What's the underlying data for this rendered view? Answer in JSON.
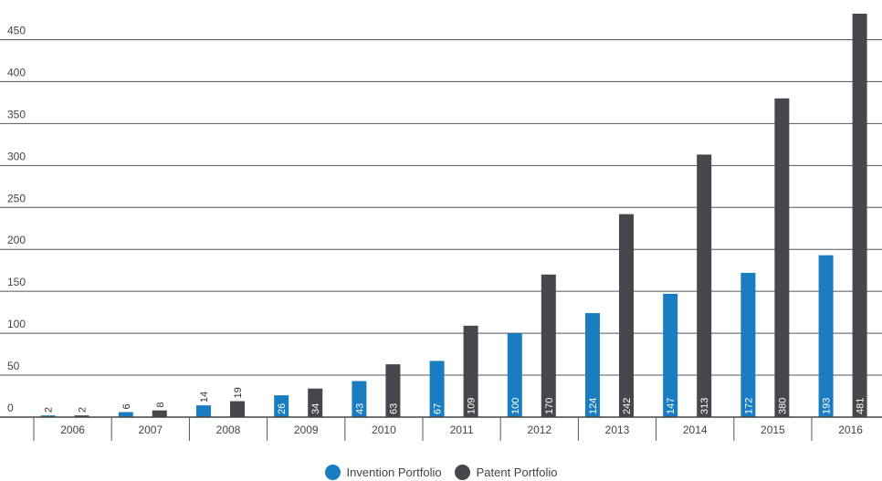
{
  "chart_data": {
    "type": "bar",
    "categories": [
      "2006",
      "2007",
      "2008",
      "2009",
      "2010",
      "2011",
      "2012",
      "2013",
      "2014",
      "2015",
      "2016"
    ],
    "series": [
      {
        "name": "Invention Portfolio",
        "color": "#1a7dc1",
        "values": [
          2,
          6,
          14,
          26,
          43,
          67,
          100,
          124,
          147,
          172,
          193
        ]
      },
      {
        "name": "Patent Portfolio",
        "color": "#45474c",
        "values": [
          2,
          8,
          19,
          34,
          63,
          109,
          170,
          242,
          313,
          380,
          481
        ]
      }
    ],
    "y_ticks": [
      0,
      50,
      100,
      150,
      200,
      250,
      300,
      350,
      400,
      450
    ],
    "ylim": [
      0,
      481
    ],
    "grid": true,
    "legend_position": "bottom-center"
  }
}
